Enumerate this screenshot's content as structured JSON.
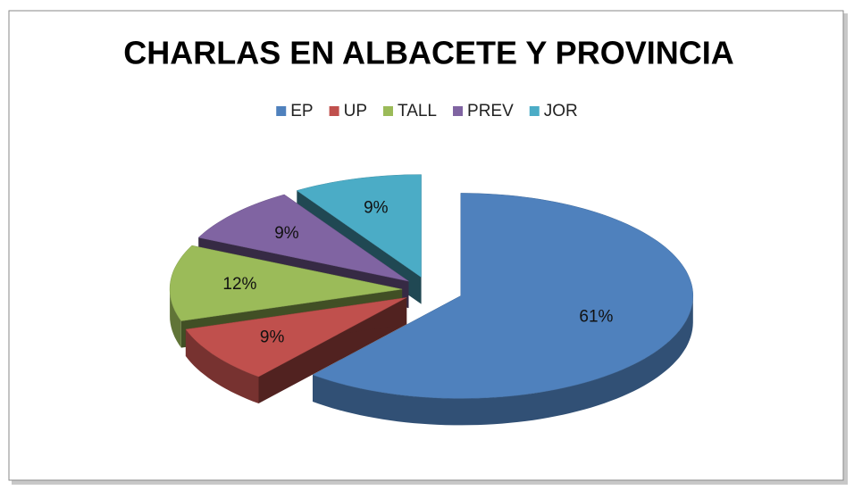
{
  "chart_data": {
    "type": "pie",
    "title": "CHARLAS EN ALBACETE Y PROVINCIA",
    "categories": [
      "EP",
      "UP",
      "TALL",
      "PREV",
      "JOR"
    ],
    "values": [
      61,
      9,
      12,
      9,
      9
    ],
    "value_labels": [
      "61%",
      "9%",
      "12%",
      "9%",
      "9%"
    ],
    "colors": [
      "#4f81bd",
      "#c0504d",
      "#9bbb59",
      "#8064a2",
      "#4bacc6"
    ],
    "legend": "top",
    "exploded": true,
    "three_d": true
  }
}
